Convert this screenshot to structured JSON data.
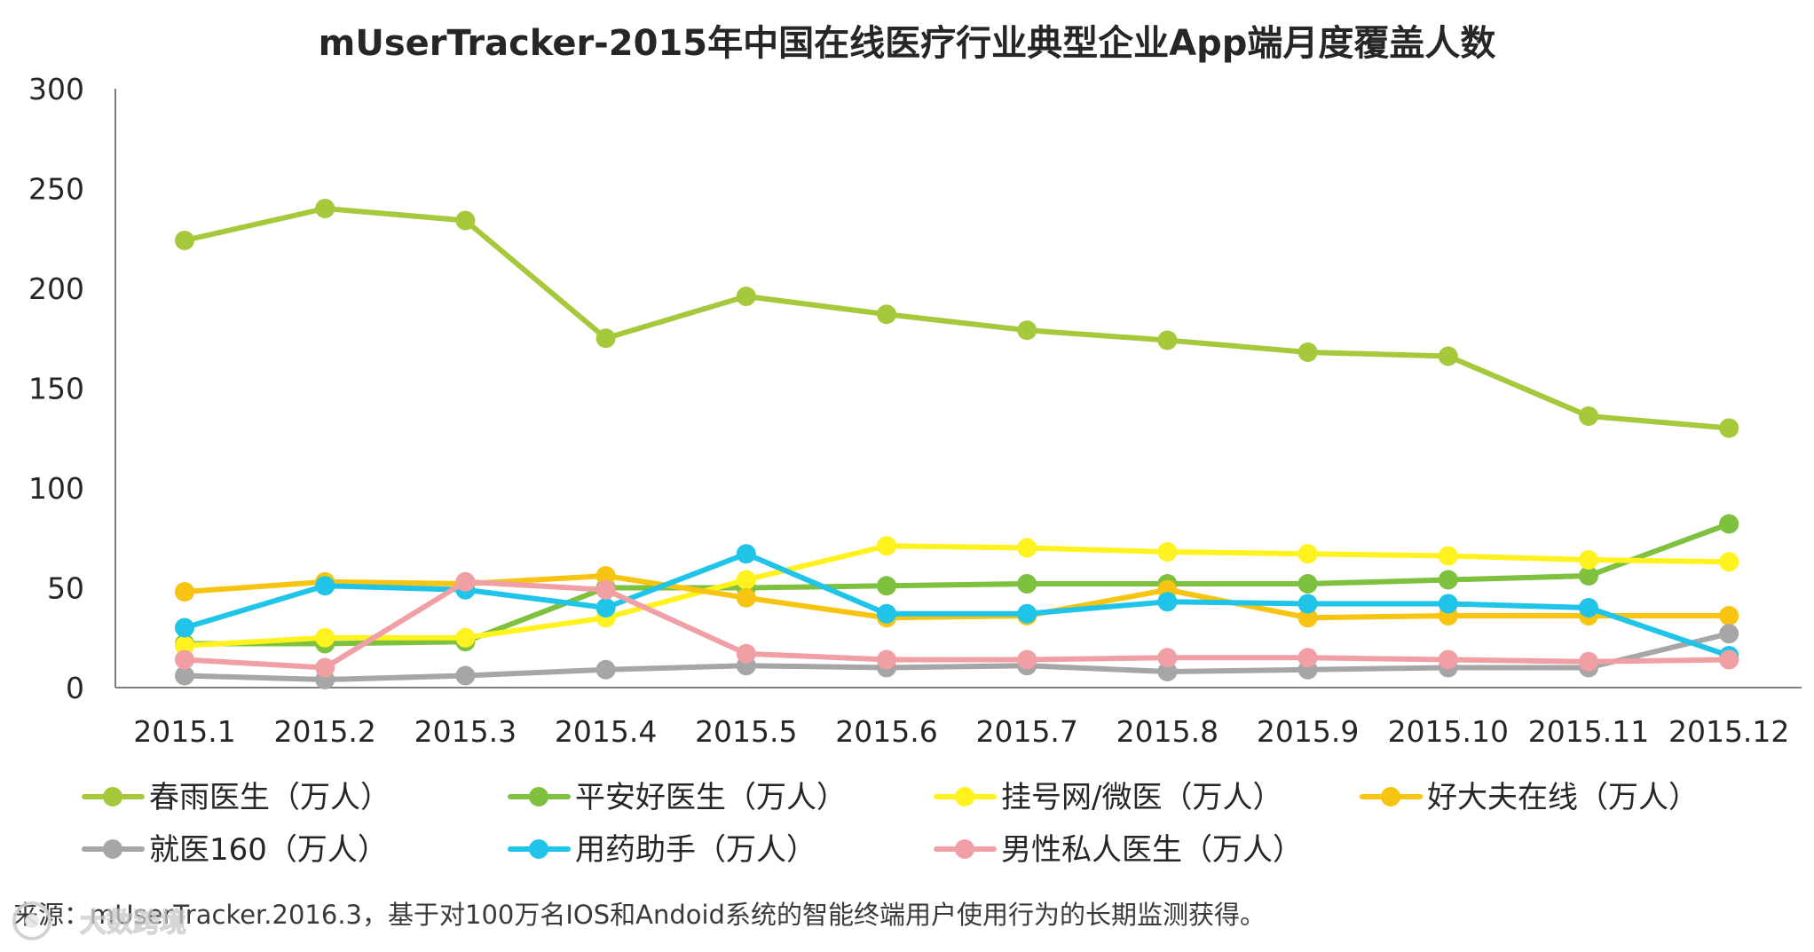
{
  "chart_data": {
    "type": "line",
    "title": "mUserTracker-2015年中国在线医疗行业典型企业App端月度覆盖人数",
    "xlabel": "",
    "ylabel": "",
    "categories": [
      "2015.1",
      "2015.2",
      "2015.3",
      "2015.4",
      "2015.5",
      "2015.6",
      "2015.7",
      "2015.8",
      "2015.9",
      "2015.10",
      "2015.11",
      "2015.12"
    ],
    "ylim": [
      0,
      300
    ],
    "yticks": [
      0,
      50,
      100,
      150,
      200,
      250,
      300
    ],
    "grid": false,
    "legend_position": "bottom",
    "series": [
      {
        "name": "春雨医生（万人）",
        "color": "#a5c93a",
        "values": [
          224,
          240,
          234,
          175,
          196,
          187,
          179,
          174,
          168,
          166,
          136,
          130
        ]
      },
      {
        "name": "平安好医生（万人）",
        "color": "#7dc13f",
        "values": [
          22,
          22,
          23,
          50,
          50,
          51,
          52,
          52,
          52,
          54,
          56,
          82
        ]
      },
      {
        "name": "挂号网/微医（万人）",
        "color": "#fff21f",
        "values": [
          21,
          25,
          25,
          35,
          54,
          71,
          70,
          68,
          67,
          66,
          64,
          63
        ]
      },
      {
        "name": "好大夫在线（万人）",
        "color": "#f7c411",
        "values": [
          48,
          53,
          52,
          56,
          45,
          35,
          36,
          49,
          35,
          36,
          36,
          36
        ]
      },
      {
        "name": "就医160（万人）",
        "color": "#a6a6a6",
        "values": [
          6,
          4,
          6,
          9,
          11,
          10,
          11,
          8,
          9,
          10,
          10,
          27
        ]
      },
      {
        "name": "用药助手（万人）",
        "color": "#1fc4e8",
        "values": [
          30,
          51,
          49,
          40,
          67,
          37,
          37,
          43,
          42,
          42,
          40,
          16
        ]
      },
      {
        "name": "男性私人医生（万人）",
        "color": "#f0a0a5",
        "values": [
          14,
          10,
          53,
          49,
          17,
          14,
          14,
          15,
          15,
          14,
          13,
          14
        ]
      }
    ]
  },
  "source": "来源：mUserTracker.2016.3，基于对100万名IOS和Andoid系统的智能终端用户使用行为的长期监测获得。",
  "watermark": "大数跨境"
}
